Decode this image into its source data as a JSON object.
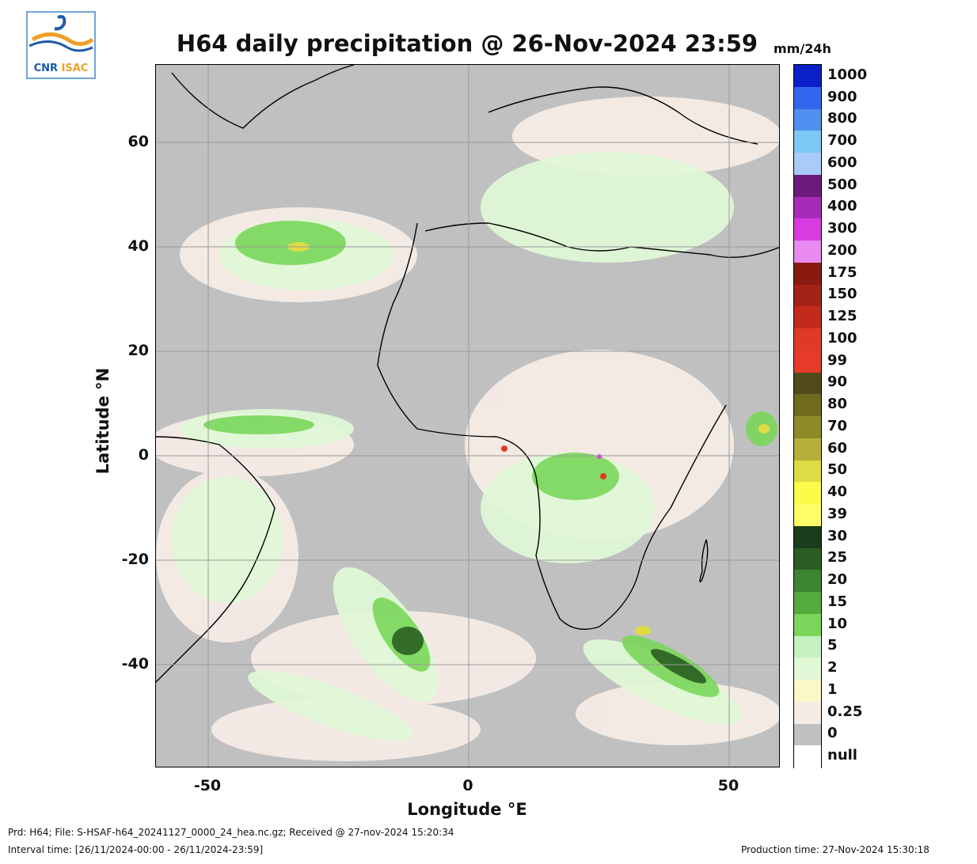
{
  "logo": {
    "text_a": "CNR",
    "text_b": "ISAC"
  },
  "title": "H64 daily precipitation @ 26-Nov-2024 23:59",
  "units": "mm/24h",
  "axes": {
    "ylabel": "Latitude °N",
    "xlabel": "Longitude °E",
    "yticks": [
      "60",
      "40",
      "20",
      "0",
      "-20",
      "-40"
    ],
    "xticks": [
      "-50",
      "0",
      "50"
    ]
  },
  "colorbar": {
    "labels": [
      "1000",
      "900",
      "800",
      "700",
      "600",
      "500",
      "400",
      "300",
      "200",
      "175",
      "150",
      "125",
      "100",
      "99",
      "90",
      "80",
      "70",
      "60",
      "50",
      "40",
      "39",
      "30",
      "25",
      "20",
      "15",
      "10",
      "5",
      "2",
      "1",
      "0.25",
      "0",
      "null"
    ],
    "colors": [
      "#0a1fc8",
      "#3366ee",
      "#4f8ff0",
      "#7cc8f6",
      "#a8cbf8",
      "#6a1b7d",
      "#a82bb8",
      "#d83ce0",
      "#e88af0",
      "#8a1a10",
      "#a52316",
      "#c22a1c",
      "#e03a26",
      "#e63a2a",
      "#4f4a18",
      "#6f6a1e",
      "#8f8a28",
      "#b5b03a",
      "#dedc44",
      "#fbfb49",
      "#fdfd66",
      "#1b3d1b",
      "#2a5e22",
      "#3c8530",
      "#55aa3c",
      "#7ad65a",
      "#c5f2c0",
      "#e0f8d6",
      "#fbf8c8",
      "#f6ece6",
      "#c0c0c0",
      "#ffffff"
    ]
  },
  "footer": {
    "line1": "Prd: H64; File: S-HSAF-h64_20241127_0000_24_hea.nc.gz; Received @ 27-nov-2024 15:20:34",
    "line2": "Interval time: [26/11/2024-00:00 - 26/11/2024-23:59]",
    "production": "Production time: 27-Nov-2024 15:30:18"
  }
}
